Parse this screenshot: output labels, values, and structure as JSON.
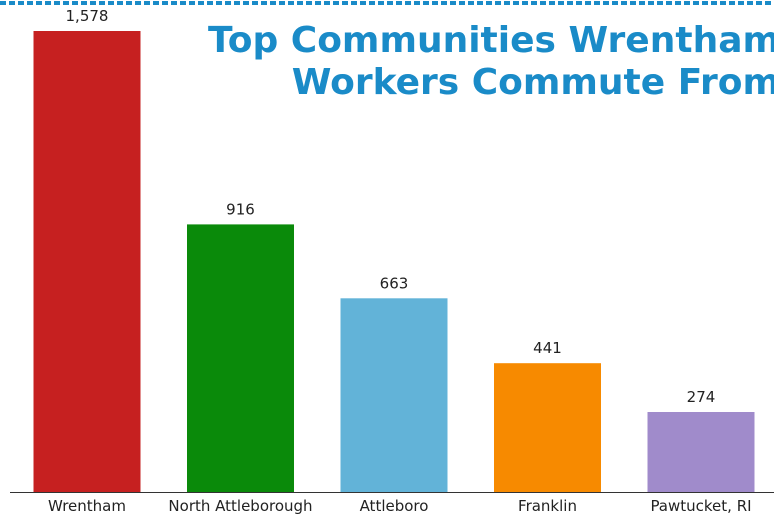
{
  "title_lines": [
    "Top Communities Wrentham",
    "Workers Commute From"
  ],
  "colors": {
    "accent": "#1a8bc8",
    "axis": "#333333"
  },
  "chart_data": {
    "type": "bar",
    "title": "Top Communities Wrentham Workers Commute From",
    "xlabel": "",
    "ylabel": "",
    "categories": [
      "Wrentham",
      "North Attleborough",
      "Attleboro",
      "Franklin",
      "Pawtucket, RI"
    ],
    "values": [
      1578,
      916,
      663,
      441,
      274
    ],
    "value_labels": [
      "1,578",
      "916",
      "663",
      "441",
      "274"
    ],
    "colors": [
      "#c62020",
      "#0a8a0a",
      "#62b3d8",
      "#f78a00",
      "#a08bcb"
    ],
    "ylim": [
      0,
      1578
    ],
    "grid": false,
    "legend": "none"
  }
}
